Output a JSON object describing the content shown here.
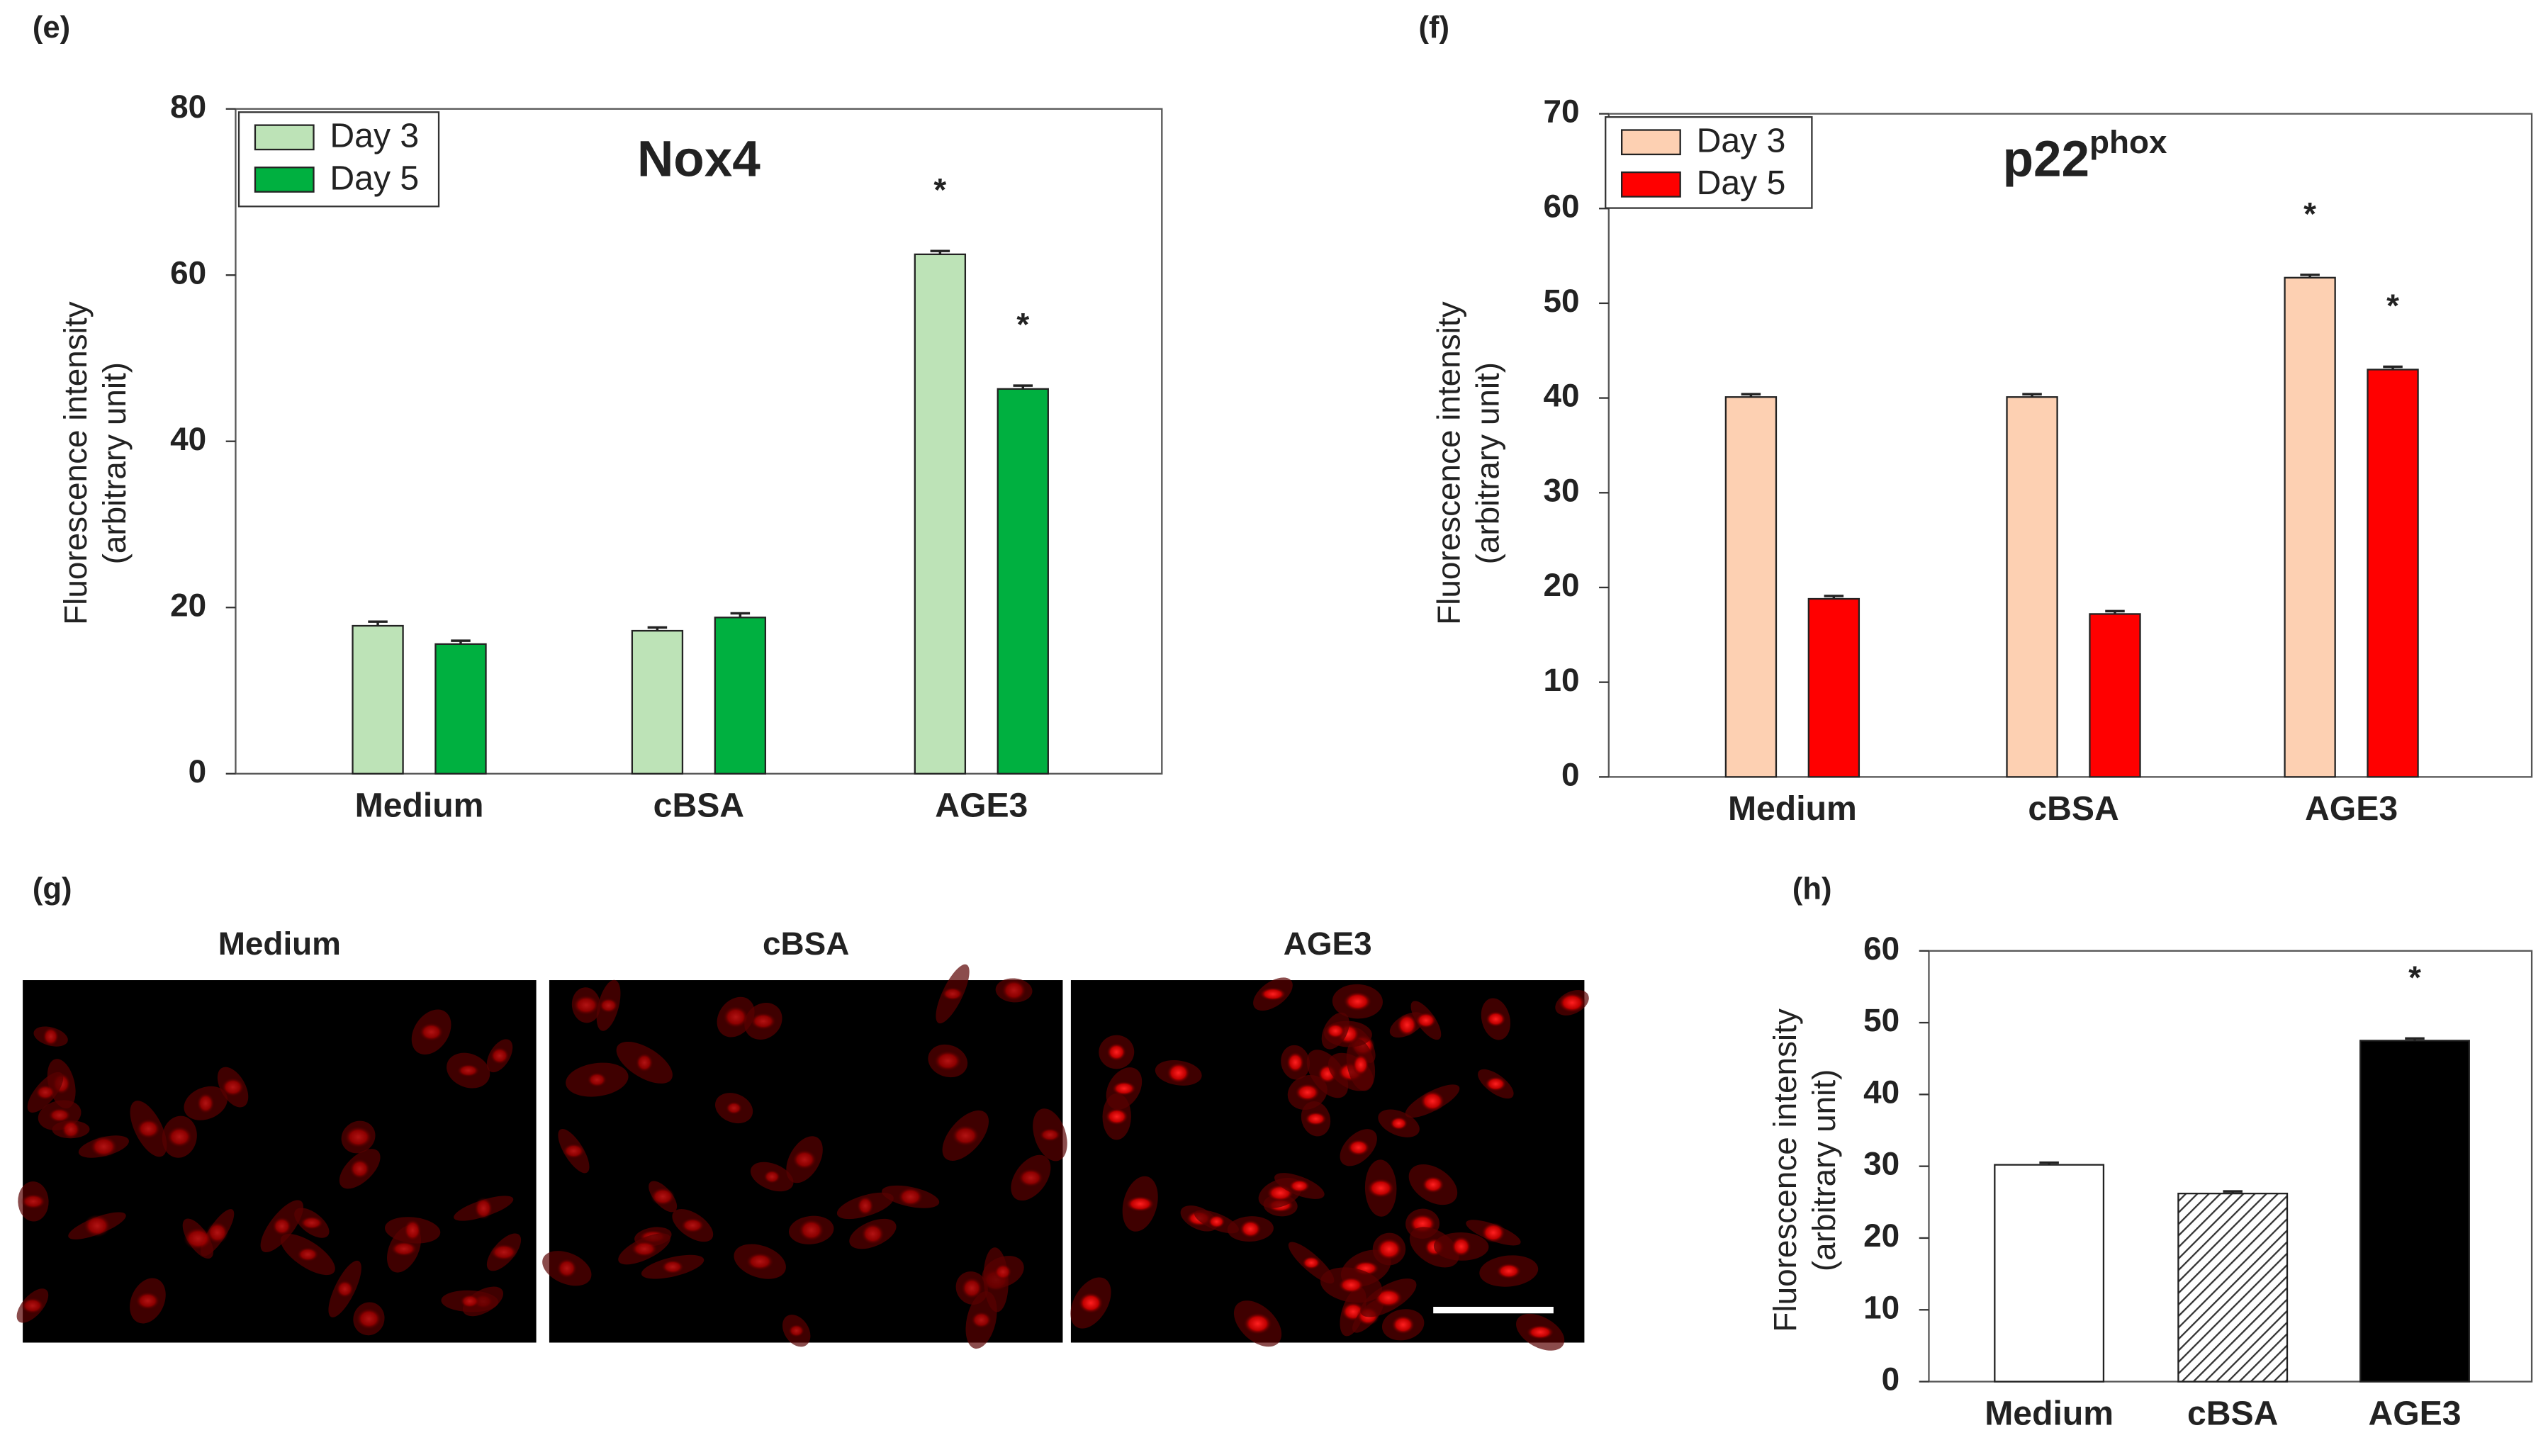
{
  "chart_data": [
    {
      "type": "bar",
      "panel_label": "(e)",
      "title": "Nox4",
      "y_label": [
        "Fluorescence intensity",
        "(arbitrary unit)"
      ],
      "categories": [
        "Medium",
        "cBSA",
        "AGE3"
      ],
      "series": [
        {
          "name": "Day 3",
          "color": "#bde3b7",
          "values": [
            17.8,
            17.2,
            62.5
          ],
          "errors": [
            0.5,
            0.4,
            0.4
          ]
        },
        {
          "name": "Day 5",
          "color": "#00b040",
          "values": [
            15.6,
            18.8,
            46.3
          ],
          "errors": [
            0.4,
            0.5,
            0.4
          ]
        }
      ],
      "ylim": [
        0,
        80
      ],
      "yticks": [
        0,
        20,
        40,
        60,
        80
      ],
      "annotations": [
        {
          "text": "*",
          "series": 0,
          "category": 2
        },
        {
          "text": "*",
          "series": 1,
          "category": 2
        }
      ]
    },
    {
      "type": "bar",
      "panel_label": "(f)",
      "title": "p22",
      "title_superscript": "phox",
      "y_label": [
        "Fluorescence intensity",
        "(arbitrary unit)"
      ],
      "categories": [
        "Medium",
        "cBSA",
        "AGE3"
      ],
      "series": [
        {
          "name": "Day 3",
          "color": "#fdd0b2",
          "values": [
            40.1,
            40.1,
            52.7
          ],
          "errors": [
            0.3,
            0.3,
            0.3
          ]
        },
        {
          "name": "Day 5",
          "color": "#ff0000",
          "values": [
            18.8,
            17.2,
            43.0
          ],
          "errors": [
            0.3,
            0.3,
            0.3
          ]
        }
      ],
      "ylim": [
        0,
        70
      ],
      "yticks": [
        0,
        10,
        20,
        30,
        40,
        50,
        60,
        70
      ],
      "annotations": [
        {
          "text": "*",
          "series": 0,
          "category": 2
        },
        {
          "text": "*",
          "series": 1,
          "category": 2
        }
      ]
    },
    {
      "type": "bar",
      "panel_label": "(h)",
      "y_label": [
        "Fluorescence intensity",
        "(arbitrary unit)"
      ],
      "categories": [
        "Medium",
        "cBSA",
        "AGE3"
      ],
      "series": [
        {
          "colors": [
            "#ffffff",
            "#ffffff",
            "#000000"
          ],
          "hatch": [
            false,
            true,
            false
          ],
          "values": [
            30.2,
            26.2,
            47.5
          ],
          "errors": [
            0.3,
            0.3,
            0.3
          ]
        }
      ],
      "ylim": [
        0,
        60
      ],
      "yticks": [
        0,
        10,
        20,
        30,
        40,
        50,
        60
      ],
      "annotations": [
        {
          "text": "*",
          "series": 0,
          "category": 2
        }
      ]
    }
  ],
  "panel_g": {
    "panel_label": "(g)",
    "images": [
      "Medium",
      "cBSA",
      "AGE3"
    ]
  }
}
